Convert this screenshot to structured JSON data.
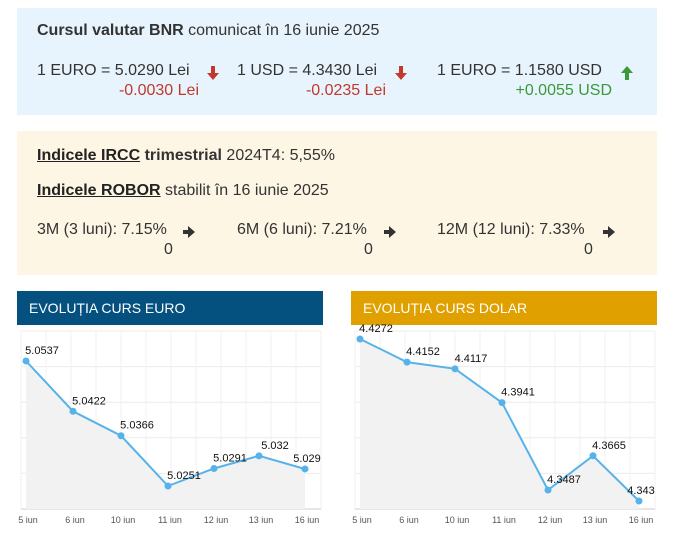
{
  "bnr": {
    "title_bold": "Cursul valutar BNR",
    "title_rest": "comunicat în 16 iunie 2025",
    "rates": [
      {
        "label": "1 EURO = 5.0290 Lei",
        "change": "-0.0030 Lei",
        "direction": "down"
      },
      {
        "label": "1 USD = 4.3430 Lei",
        "change": "-0.0235 Lei",
        "direction": "down"
      },
      {
        "label": "1 EURO = 1.1580 USD",
        "change": "+0.0055 USD",
        "direction": "up"
      }
    ]
  },
  "ircc": {
    "link": "Indicele IRCC",
    "bold": "trimestrial",
    "value": "2024T4: 5,55%"
  },
  "robor": {
    "link": "Indicele ROBOR",
    "rest": "stabilit în 16 iunie 2025",
    "tenors": [
      {
        "label": "3M (3 luni): 7.15%",
        "change": "0"
      },
      {
        "label": "6M (6 luni): 7.21%",
        "change": "0"
      },
      {
        "label": "12M (12 luni): 7.33%",
        "change": "0"
      }
    ]
  },
  "colors": {
    "euro_header": "#04507f",
    "dolar_header": "#e0a000",
    "line": "#55b3ea",
    "down": "#c0392b",
    "up": "#3a9a3a"
  },
  "chart_data": [
    {
      "type": "line",
      "title": "EVOLUȚIA CURS EURO",
      "categories": [
        "5 iun",
        "6 iun",
        "10 iun",
        "11 iun",
        "12 iun",
        "13 iun",
        "16 iun"
      ],
      "values": [
        5.0537,
        5.0422,
        5.0366,
        5.0251,
        5.0291,
        5.032,
        5.029
      ],
      "labels": [
        "5.0537",
        "5.0422",
        "5.0366",
        "5.0251",
        "5.0291",
        "5.032",
        "5.029"
      ],
      "grid": true
    },
    {
      "type": "line",
      "title": "EVOLUȚIA CURS DOLAR",
      "categories": [
        "5 iun",
        "6 iun",
        "10 iun",
        "11 iun",
        "12 iun",
        "13 iun",
        "16 iun"
      ],
      "values": [
        4.4272,
        4.4152,
        4.4117,
        4.3941,
        4.3487,
        4.3665,
        4.343
      ],
      "labels": [
        "4.4272",
        "4.4152",
        "4.4117",
        "4.3941",
        "4.3487",
        "4.3665",
        "4.343"
      ],
      "grid": true
    }
  ]
}
